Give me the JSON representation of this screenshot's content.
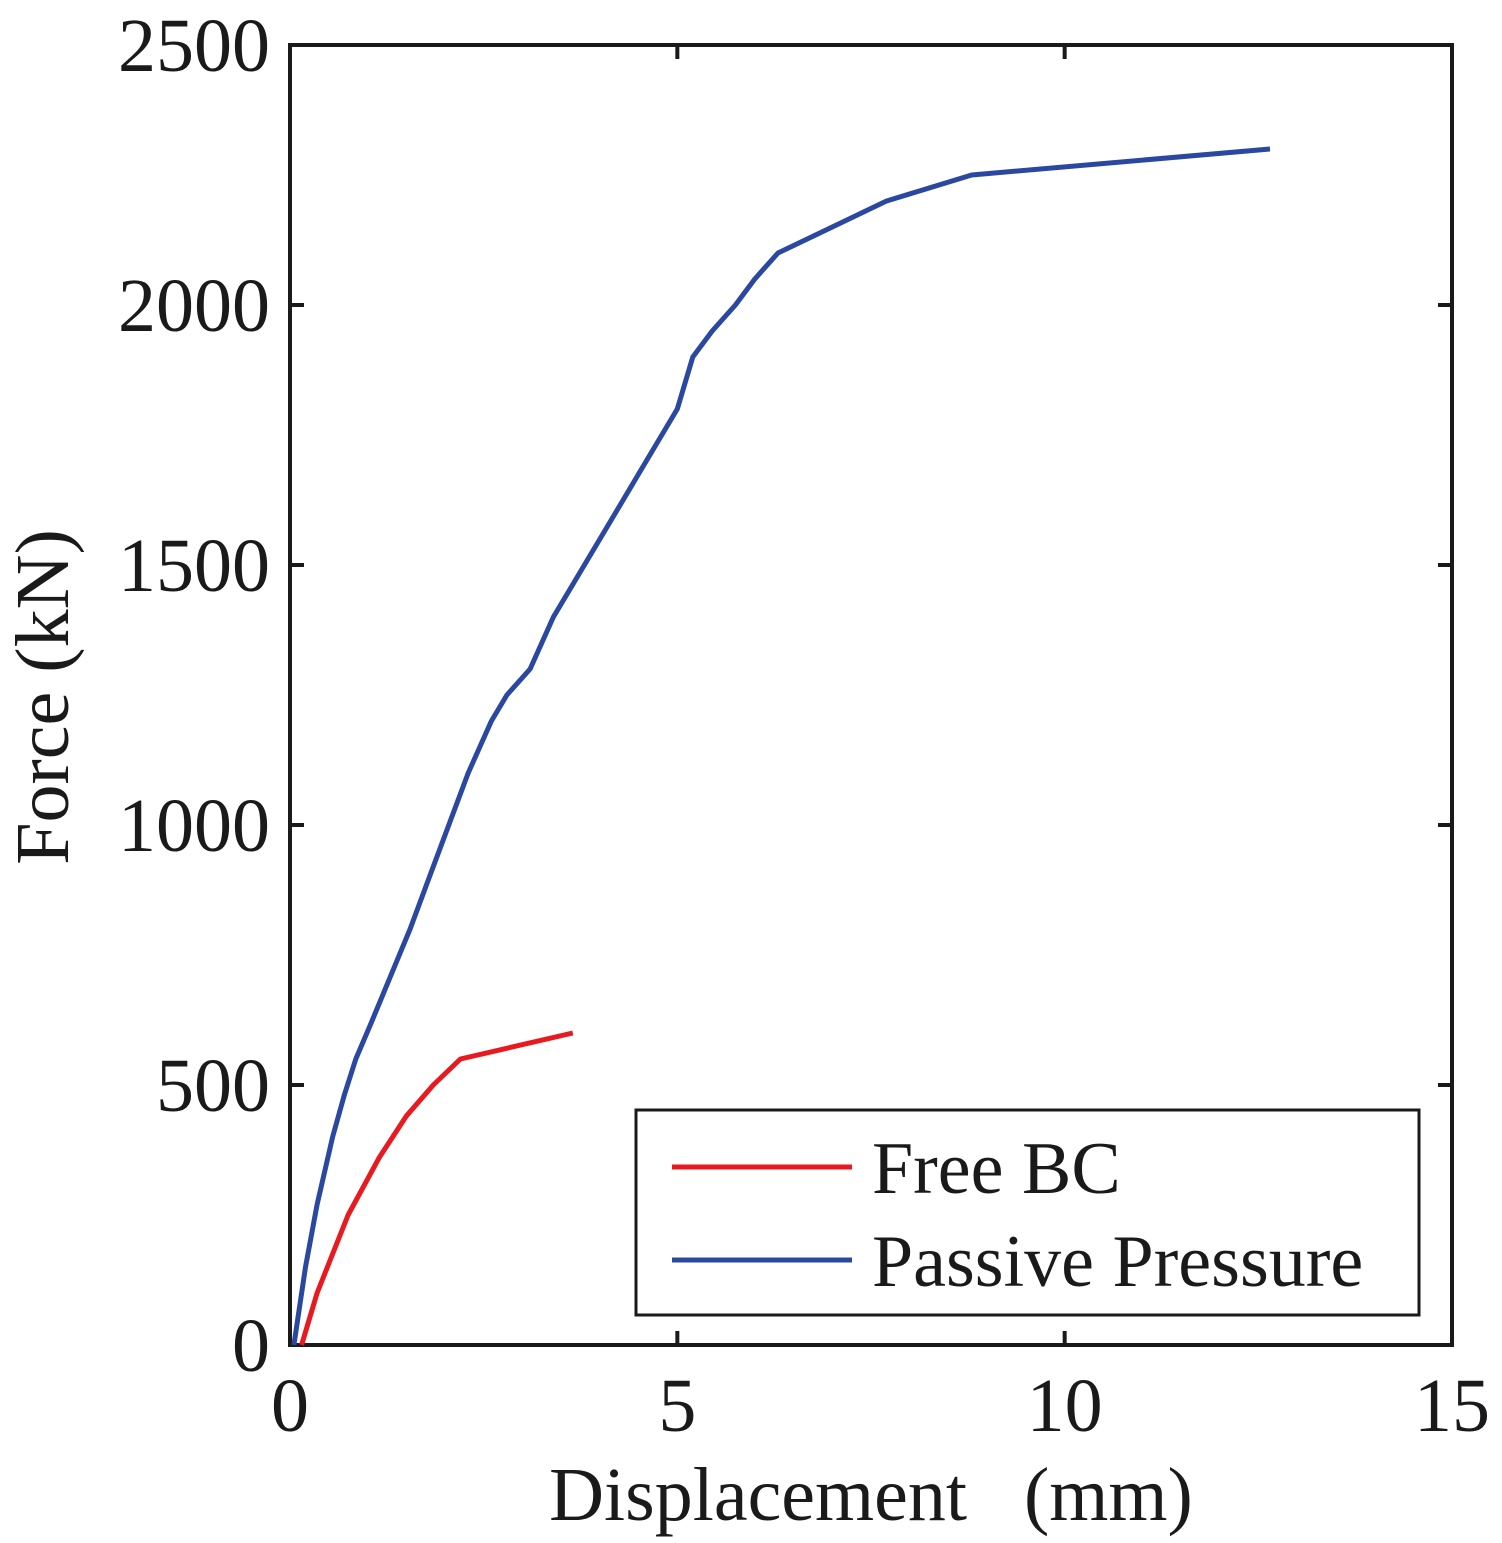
{
  "chart_data": {
    "type": "line",
    "title": "",
    "xlabel": "Displacement   (mm)",
    "ylabel": "Force (kN)",
    "xlim": [
      0,
      15
    ],
    "ylim": [
      0,
      2500
    ],
    "xticks": [
      0,
      5,
      10,
      15
    ],
    "yticks": [
      0,
      500,
      1000,
      1500,
      2000,
      2500
    ],
    "xtick_labels": [
      "0",
      "5",
      "10",
      "15"
    ],
    "ytick_labels": [
      "0",
      "500",
      "1000",
      "1500",
      "2000",
      "2500"
    ],
    "grid": false,
    "legend_position": "bottom-right",
    "series": [
      {
        "name": "Free BC",
        "color": "#e8191f",
        "x": [
          0.15,
          0.35,
          0.75,
          1.15,
          1.5,
          1.85,
          2.2,
          3.65
        ],
        "y": [
          0,
          100,
          250,
          360,
          440,
          500,
          550,
          600
        ]
      },
      {
        "name": "Passive Pressure",
        "color": "#2b48a0",
        "x": [
          0.05,
          0.2,
          0.35,
          0.55,
          0.7,
          0.85,
          1.05,
          1.3,
          1.55,
          1.8,
          2.05,
          2.3,
          2.6,
          2.8,
          3.1,
          3.4,
          3.8,
          4.2,
          4.6,
          5.0,
          5.2,
          5.45,
          5.75,
          6.0,
          6.3,
          7.0,
          7.7,
          8.8,
          12.65
        ],
        "y": [
          0,
          150,
          270,
          400,
          480,
          550,
          620,
          710,
          800,
          900,
          1000,
          1100,
          1200,
          1250,
          1300,
          1400,
          1500,
          1600,
          1700,
          1800,
          1900,
          1950,
          2000,
          2050,
          2100,
          2150,
          2200,
          2250,
          2300
        ]
      }
    ]
  }
}
